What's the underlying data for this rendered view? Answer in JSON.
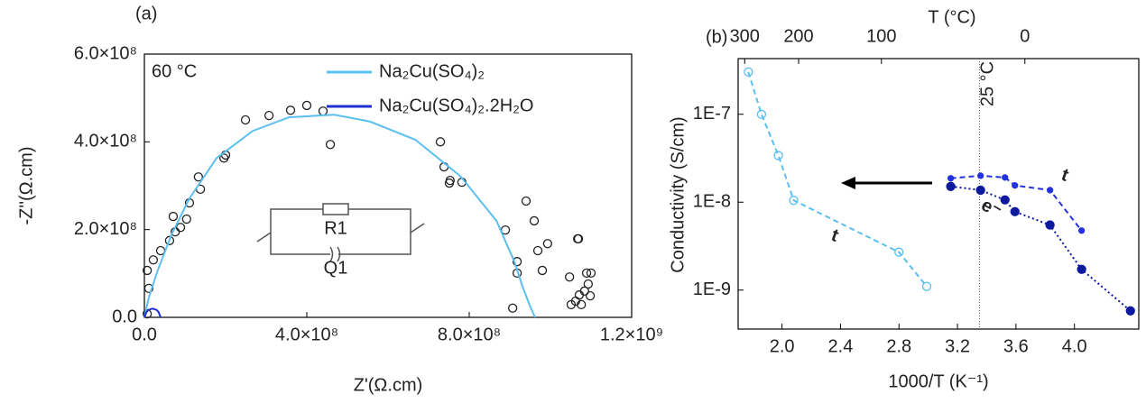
{
  "chart_data": [
    {
      "type": "line",
      "panel_label": "(a)",
      "xlabel": "Z'(Ω.cm)",
      "ylabel": "-Z''(Ω.cm)",
      "xlim": [
        0,
        1200000000
      ],
      "ylim": [
        0,
        600000000
      ],
      "xticks": [
        {
          "value": 0,
          "label": "0.0"
        },
        {
          "value": 400000000,
          "label": "4.0×10⁸"
        },
        {
          "value": 800000000,
          "label": "8.0×10⁸"
        },
        {
          "value": 1200000000,
          "label": "1.2×10⁹"
        }
      ],
      "yticks": [
        {
          "value": 0,
          "label": "0.0"
        },
        {
          "value": 200000000,
          "label": "2.0×10⁸"
        },
        {
          "value": 400000000,
          "label": "4.0×10⁸"
        },
        {
          "value": 600000000,
          "label": "6.0×10⁸"
        }
      ],
      "annotations": [
        "60 °C",
        "R1",
        "Q1"
      ],
      "series": [
        {
          "color": "#222222",
          "mode": "markers",
          "marker": "open",
          "x": [
            7000000.0,
            11000000.0,
            7000000.0,
            22000000.0,
            40000000.0,
            62000000.0,
            76000000.0,
            89000000.0,
            104000000.0,
            71000000.0,
            111000000.0,
            133000000.0,
            138000000.0,
            200000000.0,
            196000000.0,
            249000000.0,
            307000000.0,
            360000000.0,
            400000000.0,
            440000000.0,
            458000000.0,
            729000000.0,
            738000000.0,
            753000000.0,
            782000000.0,
            751000000.0,
            889000000.0,
            918000000.0,
            918000000.0,
            907000000.0,
            940000000.0,
            960000000.0,
            969000000.0,
            993000000.0,
            980000000.0,
            1047000000.0,
            1067000000.0,
            1069000000.0,
            1089000000.0,
            1100000000.0,
            1071000000.0,
            1051000000.0,
            1076000000.0,
            1084000000.0,
            1093000000.0,
            1062000000.0,
            1098000000.0
          ],
          "values": [
            8000000.0,
            66000000.0,
            107000000.0,
            131000000.0,
            152000000.0,
            175000000.0,
            195000000.0,
            205000000.0,
            224000000.0,
            230000000.0,
            261000000.0,
            320000000.0,
            292000000.0,
            370000000.0,
            363000000.0,
            450000000.0,
            460000000.0,
            472000000.0,
            483000000.0,
            470000000.0,
            394000000.0,
            400000000.0,
            343000000.0,
            312000000.0,
            308000000.0,
            306000000.0,
            199000000.0,
            127000000.0,
            101000000.0,
            21000000.0,
            265000000.0,
            220000000.0,
            152000000.0,
            168000000.0,
            107000000.0,
            92000000.0,
            179000000.0,
            179000000.0,
            101000000.0,
            101000000.0,
            51000000.0,
            29000000.0,
            29000000.0,
            60000000.0,
            76000000.0,
            37000000.0,
            49000000.0
          ]
        },
        {
          "name": "Na₂Cu(SO₄)₂",
          "color": "#5bbff0",
          "mode": "line",
          "dash": "solid",
          "x": [
            0,
            11000000.0,
            33000000.0,
            67000000.0,
            111000000.0,
            178000000.0,
            267000000.0,
            356000000.0,
            467000000.0,
            556000000.0,
            667000000.0,
            778000000.0,
            867000000.0,
            911000000.0,
            933000000.0,
            950000000.0,
            962000000.0
          ],
          "values": [
            0,
            45000000.0,
            107000000.0,
            189000000.0,
            271000000.0,
            363000000.0,
            425000000.0,
            456000000.0,
            462000000.0,
            446000000.0,
            405000000.0,
            322000000.0,
            220000000.0,
            127000000.0,
            66000000.0,
            25000000.0,
            0
          ]
        },
        {
          "name": "Na₂Cu(SO₄)₂.2H₂O",
          "color": "#1f2fd0",
          "mode": "line",
          "dash": "solid",
          "x": [
            0,
            5000000.0,
            10000000.0,
            20000000.0,
            30000000.0,
            35000000.0,
            40000000.0
          ],
          "values": [
            0,
            12000000.0,
            17000000.0,
            20000000.0,
            17000000.0,
            12000000.0,
            0
          ]
        }
      ]
    },
    {
      "type": "line",
      "panel_label": "(b)",
      "yscale": "log",
      "xlabel": "1000/T (K⁻¹)",
      "ylabel": "Conductivity (S/cm)",
      "x2label": "T (°C)",
      "xlim": [
        1.7,
        4.44
      ],
      "ylim": [
        3.6e-10,
        4.3e-07
      ],
      "xticks": [
        {
          "value": 2,
          "label": "2.0"
        },
        {
          "value": 2.4,
          "label": "2.4"
        },
        {
          "value": 2.8,
          "label": "2.8"
        },
        {
          "value": 3.2,
          "label": "3.2"
        },
        {
          "value": 3.6,
          "label": "3.6"
        },
        {
          "value": 4,
          "label": "4.0"
        }
      ],
      "yticks": [
        {
          "value": 1e-09,
          "label": "1E-9"
        },
        {
          "value": 1e-08,
          "label": "1E-8"
        },
        {
          "value": 1e-07,
          "label": "1E-7"
        }
      ],
      "x2ticks": [
        300,
        200,
        100,
        0
      ],
      "reference_line": {
        "x": 3.35,
        "label": "25 °C"
      },
      "annotations": [
        "e⁻",
        "t",
        "t"
      ],
      "series": [
        {
          "color": "#5bbff0",
          "mode": "lines+markers",
          "marker": "open",
          "dash": "dashed",
          "x": [
            1.77,
            1.86,
            1.975,
            2.08,
            2.8,
            2.99
          ],
          "values": [
            3.03e-07,
            1e-07,
            3.4e-08,
            1.05e-08,
            2.7e-09,
            1.1e-09
          ]
        },
        {
          "color": "#0d1a9e",
          "mode": "lines+markers",
          "marker": "filled",
          "dash": "dotted",
          "x": [
            3.154,
            3.358,
            3.525,
            3.593,
            3.833,
            4.049,
            4.383
          ],
          "values": [
            1.51e-08,
            1.37e-08,
            1.06e-08,
            7.8e-09,
            5.5e-09,
            1.72e-09,
            5.8e-10
          ]
        },
        {
          "color": "#2233dd",
          "mode": "lines+markers",
          "marker": "small",
          "dash": "dashed",
          "x": [
            3.154,
            3.358,
            3.525,
            3.593,
            3.833,
            4.049
          ],
          "values": [
            1.87e-08,
            2e-08,
            1.91e-08,
            1.55e-08,
            1.37e-08,
            4.75e-09
          ]
        }
      ]
    }
  ]
}
